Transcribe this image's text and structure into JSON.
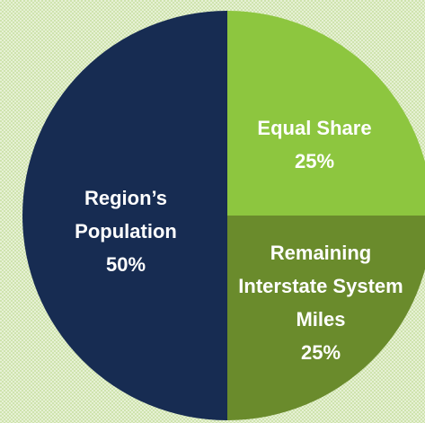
{
  "chart_data": {
    "type": "pie",
    "categories": [
      "Equal Share",
      "Remaining Interstate System Miles",
      "Region’s Population"
    ],
    "values": [
      25,
      25,
      50
    ],
    "value_labels": [
      "25%",
      "25%",
      "50%"
    ],
    "colors": [
      "#8dc63f",
      "#6a8b2c",
      "#172c52"
    ]
  }
}
